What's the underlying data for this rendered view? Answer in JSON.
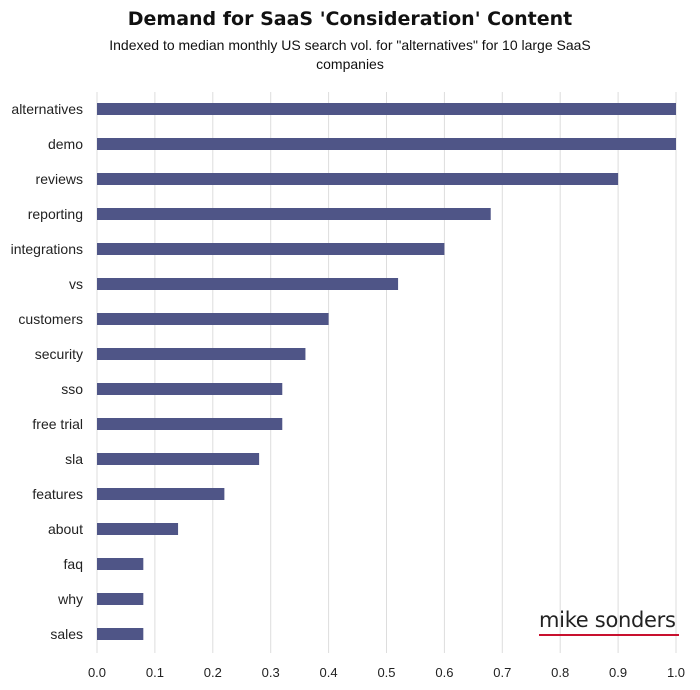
{
  "chart_data": {
    "type": "bar",
    "orientation": "horizontal",
    "title": "Demand for SaaS 'Consideration' Content",
    "subtitle": "Indexed to median monthly US search vol. for \"alternatives\" for 10 large SaaS companies",
    "categories": [
      "alternatives",
      "demo",
      "reviews",
      "reporting",
      "integrations",
      "vs",
      "customers",
      "security",
      "sso",
      "free trial",
      "sla",
      "features",
      "about",
      "faq",
      "why",
      "sales"
    ],
    "values": [
      1.0,
      1.0,
      0.9,
      0.68,
      0.6,
      0.52,
      0.4,
      0.36,
      0.32,
      0.32,
      0.28,
      0.22,
      0.14,
      0.08,
      0.08,
      0.08
    ],
    "xlim": [
      0,
      1.0
    ],
    "xticks": [
      "0.0",
      "0.1",
      "0.2",
      "0.3",
      "0.4",
      "0.5",
      "0.6",
      "0.7",
      "0.8",
      "0.9",
      "1.0"
    ],
    "grid": "vertical",
    "bar_color": "#4f5587",
    "grid_color": "#dddddd"
  },
  "brand": {
    "text": "mike sonders",
    "underline_color": "#c8102e"
  }
}
